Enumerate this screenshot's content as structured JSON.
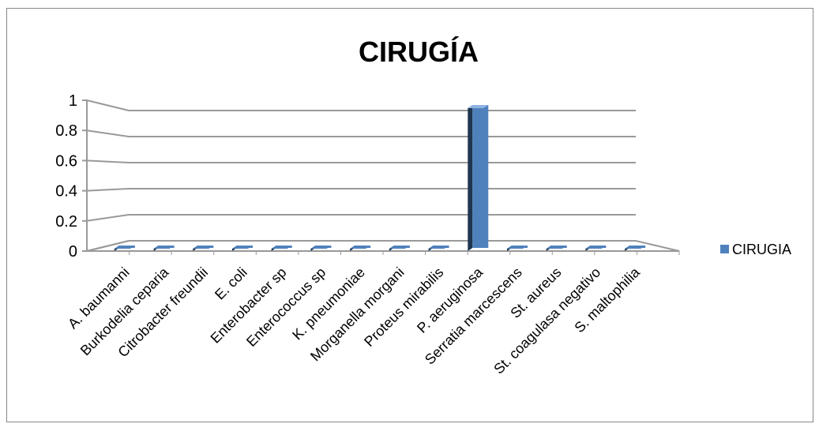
{
  "chart_data": {
    "type": "bar3d",
    "title": "CIRUGÍA",
    "categories": [
      "A. baumanni",
      "Burkodelia ceparia",
      "Citrobacter freundii",
      "E. coli",
      "Enterobacter sp",
      "Enterococcus sp",
      "K. pneumoniae",
      "Morganella morgani",
      "Proteus mirabilis",
      "P. aeruginosa",
      "Serratia marcescens",
      "St. aureus",
      "St. coagulasa negativo",
      "S. maltophilia"
    ],
    "series": [
      {
        "name": "CIRUGIA",
        "color": "#4f81bd",
        "values": [
          0,
          0,
          0,
          0,
          0,
          0,
          0,
          0,
          0,
          1,
          0,
          0,
          0,
          0
        ]
      }
    ],
    "ylim": [
      0,
      1
    ],
    "yticks": [
      0,
      0.2,
      0.4,
      0.6,
      0.8,
      1
    ],
    "grid": true,
    "legend": "right"
  }
}
